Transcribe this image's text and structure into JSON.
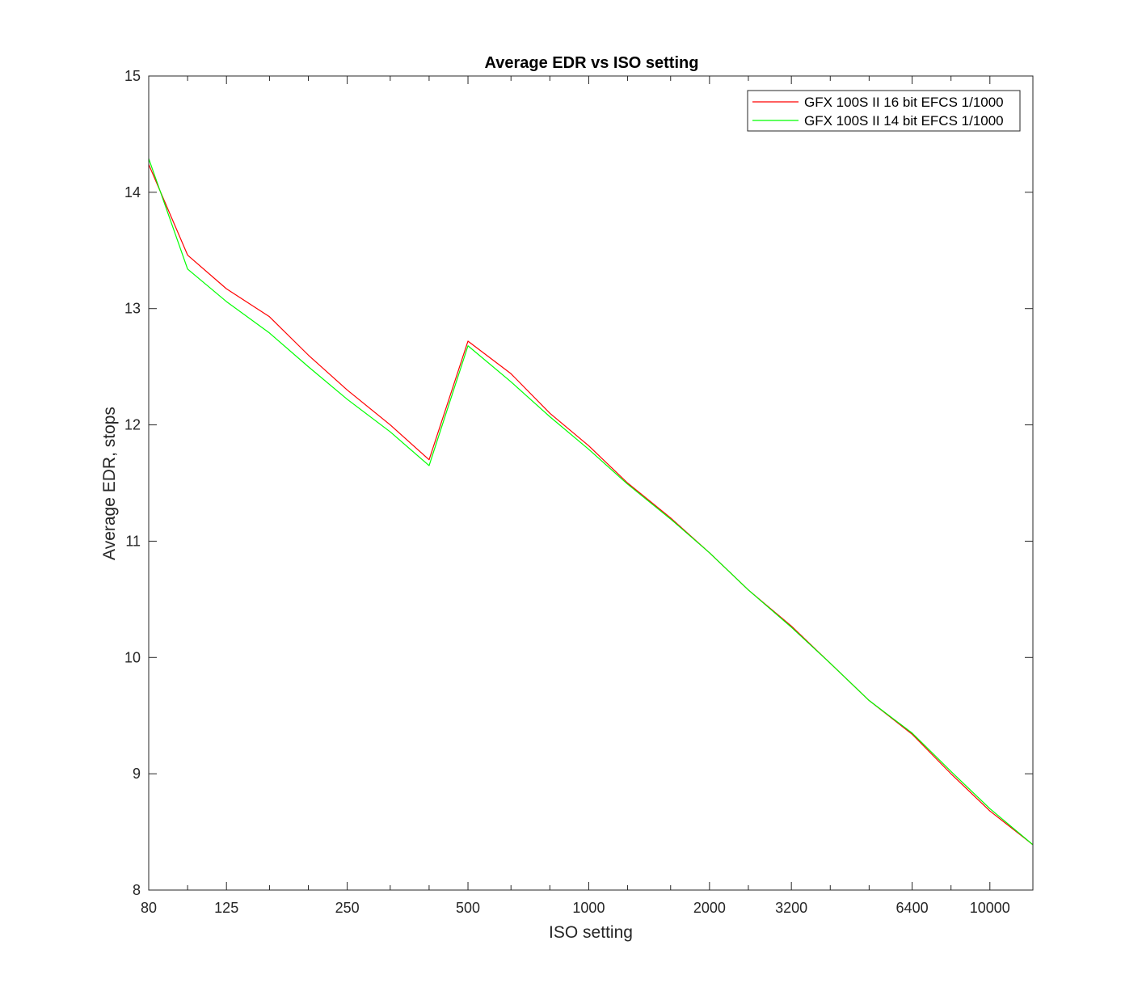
{
  "chart_data": {
    "type": "line",
    "title": "Average EDR vs ISO setting",
    "xlabel": "ISO setting",
    "ylabel": "Average EDR, stops",
    "xscale": "log",
    "xlim": [
      80,
      12800
    ],
    "ylim": [
      8,
      15
    ],
    "xticks": [
      80,
      125,
      250,
      500,
      1000,
      2000,
      3200,
      6400,
      10000
    ],
    "xtick_labels": [
      "80",
      "125",
      "250",
      "500",
      "1000",
      "2000",
      "3200",
      "6400",
      "10000"
    ],
    "xminor_ticks": [
      100,
      160,
      200,
      320,
      400,
      640,
      800,
      1250,
      1600,
      2500,
      4000,
      5000,
      8000,
      12800
    ],
    "yticks": [
      8,
      9,
      10,
      11,
      12,
      13,
      14,
      15
    ],
    "ytick_labels": [
      "8",
      "9",
      "10",
      "11",
      "12",
      "13",
      "14",
      "15"
    ],
    "grid": false,
    "legend_position": "top-right",
    "series": [
      {
        "name": "GFX 100S II 16 bit EFCS 1/1000",
        "color": "#ff0000",
        "x": [
          80,
          100,
          125,
          160,
          200,
          250,
          320,
          400,
          500,
          640,
          800,
          1000,
          1250,
          1600,
          2000,
          2500,
          3200,
          4000,
          5000,
          6400,
          8000,
          10000,
          12800
        ],
        "y": [
          14.24,
          13.46,
          13.17,
          12.93,
          12.6,
          12.3,
          12.0,
          11.7,
          12.72,
          12.44,
          12.1,
          11.82,
          11.5,
          11.2,
          10.9,
          10.58,
          10.27,
          9.95,
          9.63,
          9.34,
          9.0,
          8.68,
          8.39
        ]
      },
      {
        "name": "GFX 100S II 14 bit EFCS 1/1000",
        "color": "#00ff00",
        "x": [
          80,
          100,
          125,
          160,
          200,
          250,
          320,
          400,
          500,
          640,
          800,
          1000,
          1250,
          1600,
          2000,
          2500,
          3200,
          4000,
          5000,
          6400,
          8000,
          10000,
          12800
        ],
        "y": [
          14.29,
          13.34,
          13.06,
          12.79,
          12.5,
          12.22,
          11.94,
          11.65,
          12.68,
          12.37,
          12.07,
          11.79,
          11.49,
          11.19,
          10.9,
          10.58,
          10.26,
          9.95,
          9.63,
          9.35,
          9.02,
          8.7,
          8.39
        ]
      }
    ]
  }
}
